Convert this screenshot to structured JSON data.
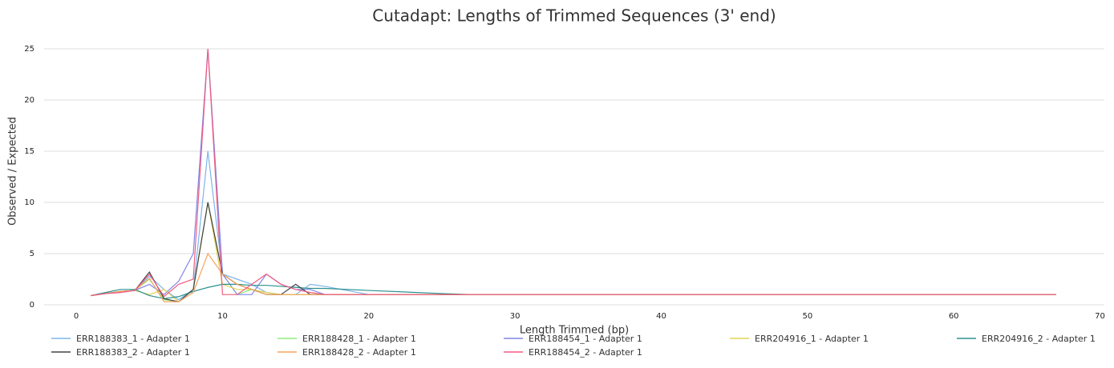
{
  "chart_data": {
    "type": "line",
    "title": "Cutadapt: Lengths of Trimmed Sequences (3' end)",
    "x_label": "Length Trimmed (bp)",
    "y_label": "Observed / Expected",
    "x": [
      1,
      2,
      3,
      4,
      5,
      6,
      7,
      8,
      9,
      10,
      11,
      12,
      13,
      14,
      15,
      16,
      17,
      20,
      25,
      27,
      67
    ],
    "xlim": [
      -2.2,
      70.3
    ],
    "xticks": [
      0,
      10,
      20,
      30,
      40,
      50,
      60,
      70
    ],
    "ylim": [
      0,
      25
    ],
    "yticks": [
      0,
      5,
      10,
      15,
      20,
      25
    ],
    "grid": true,
    "legend": "bottom",
    "series": [
      {
        "name": "ERR188383_1 - Adapter 1",
        "color": "#7cb5ec",
        "values": [
          0.9,
          1.1,
          1.3,
          1.4,
          2.8,
          1.5,
          0.5,
          1.5,
          15,
          3,
          2.5,
          2,
          1.2,
          1,
          1,
          2,
          1.8,
          1,
          1,
          1,
          1
        ]
      },
      {
        "name": "ERR188428_1 - Adapter 1",
        "color": "#90ed7d",
        "values": [
          0.9,
          1.1,
          1.3,
          1.4,
          2.5,
          0.5,
          0.3,
          1.5,
          10,
          3,
          1,
          1.5,
          1,
          1,
          1,
          1,
          1,
          1,
          1,
          1,
          1
        ]
      },
      {
        "name": "ERR188454_1 - Adapter 1",
        "color": "#8085e9",
        "values": [
          0.9,
          1.1,
          1.2,
          1.4,
          2,
          1,
          2.3,
          5,
          25,
          3,
          1,
          1,
          3,
          2,
          1.5,
          1.5,
          1,
          1,
          1,
          1,
          1
        ]
      },
      {
        "name": "ERR204916_1 - Adapter 1",
        "color": "#e4d354",
        "values": [
          0.9,
          1.1,
          1.3,
          1.4,
          1,
          1.5,
          0.3,
          1.5,
          10,
          2,
          1.5,
          1.5,
          1.2,
          1,
          1,
          1,
          1,
          1,
          1,
          1,
          1
        ]
      },
      {
        "name": "ERR204916_2 - Adapter 1",
        "color": "#2b908f",
        "values": [
          0.9,
          1.2,
          1.5,
          1.5,
          0.9,
          0.6,
          0.8,
          1.3,
          1.7,
          2,
          2,
          1.9,
          1.9,
          1.8,
          1.7,
          1.6,
          1.6,
          1.4,
          1.1,
          1,
          1
        ]
      },
      {
        "name": "ERR188383_2 - Adapter 1",
        "color": "#434348",
        "values": [
          0.9,
          1.1,
          1.3,
          1.4,
          3.2,
          0.6,
          0.3,
          1.5,
          10,
          3,
          2,
          1.5,
          1,
          1,
          2,
          1,
          1,
          1,
          1,
          1,
          1
        ]
      },
      {
        "name": "ERR188428_2 - Adapter 1",
        "color": "#f7a35c",
        "values": [
          0.9,
          1.1,
          1.3,
          1.4,
          2.6,
          0.3,
          0.3,
          1.2,
          5,
          3,
          2,
          1.5,
          1,
          1,
          1,
          1,
          1,
          1,
          1,
          1,
          1
        ]
      },
      {
        "name": "ERR188454_2 - Adapter 1",
        "color": "#f15c80",
        "values": [
          0.9,
          1.1,
          1.2,
          1.4,
          3,
          0.8,
          2,
          2.5,
          25,
          1,
          1,
          2,
          3,
          2,
          1.5,
          1.2,
          1,
          1,
          1,
          1,
          1
        ]
      }
    ]
  }
}
